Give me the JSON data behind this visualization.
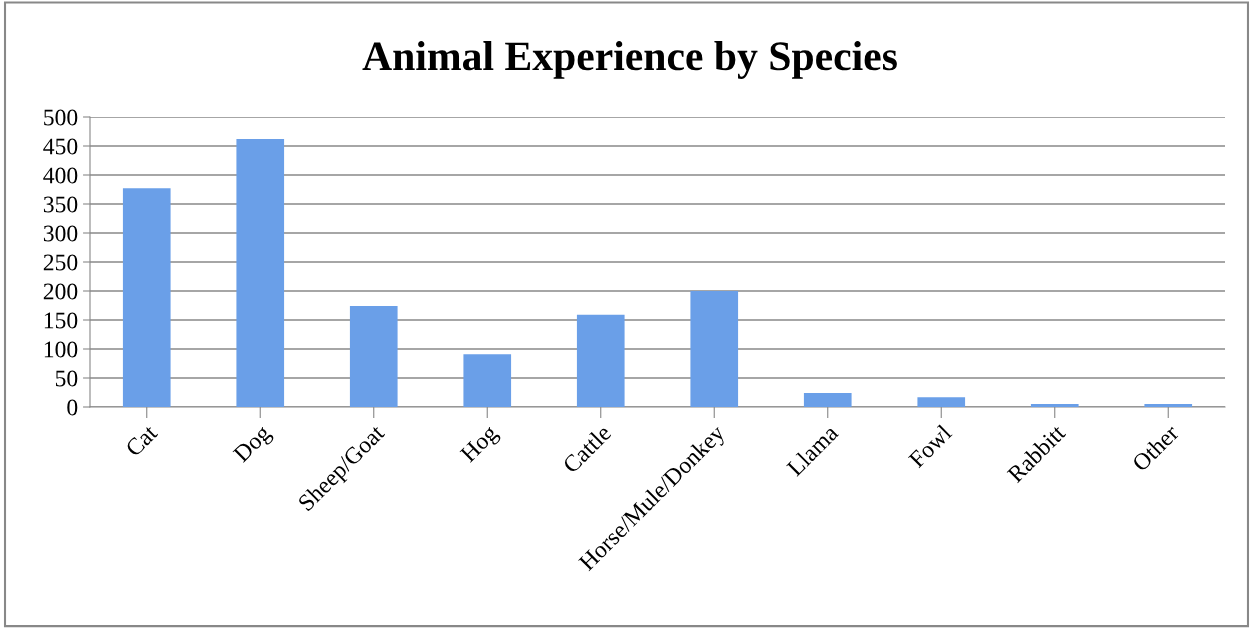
{
  "chart_data": {
    "type": "bar",
    "title": "Animal Experience by Species",
    "categories": [
      "Cat",
      "Dog",
      "Sheep/Goat",
      "Hog",
      "Cattle",
      "Horse/Mule/Donkey",
      "Llama",
      "Fowl",
      "Rabbitt",
      "Other"
    ],
    "values": [
      377,
      462,
      174,
      91,
      159,
      200,
      24,
      17,
      5,
      5
    ],
    "color": "#6a9fe8",
    "ylim": [
      0,
      500
    ],
    "yticks": [
      0,
      50,
      100,
      150,
      200,
      250,
      300,
      350,
      400,
      450,
      500
    ],
    "grid": "y"
  }
}
